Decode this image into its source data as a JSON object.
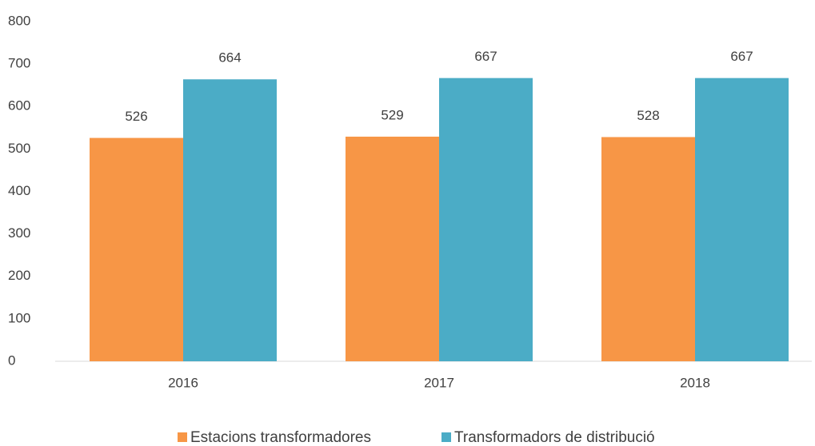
{
  "chart_data": {
    "type": "bar",
    "categories": [
      "2016",
      "2017",
      "2018"
    ],
    "series": [
      {
        "name": "Estacions transformadores",
        "color": "#f79646",
        "values": [
          526,
          529,
          528
        ]
      },
      {
        "name": "Transformadors de distribució",
        "color": "#4bacc6",
        "values": [
          664,
          667,
          667
        ]
      }
    ],
    "ylim": [
      0,
      800
    ],
    "yticks": [
      0,
      100,
      200,
      300,
      400,
      500,
      600,
      700,
      800
    ],
    "grid": false,
    "legend": "bottom"
  }
}
